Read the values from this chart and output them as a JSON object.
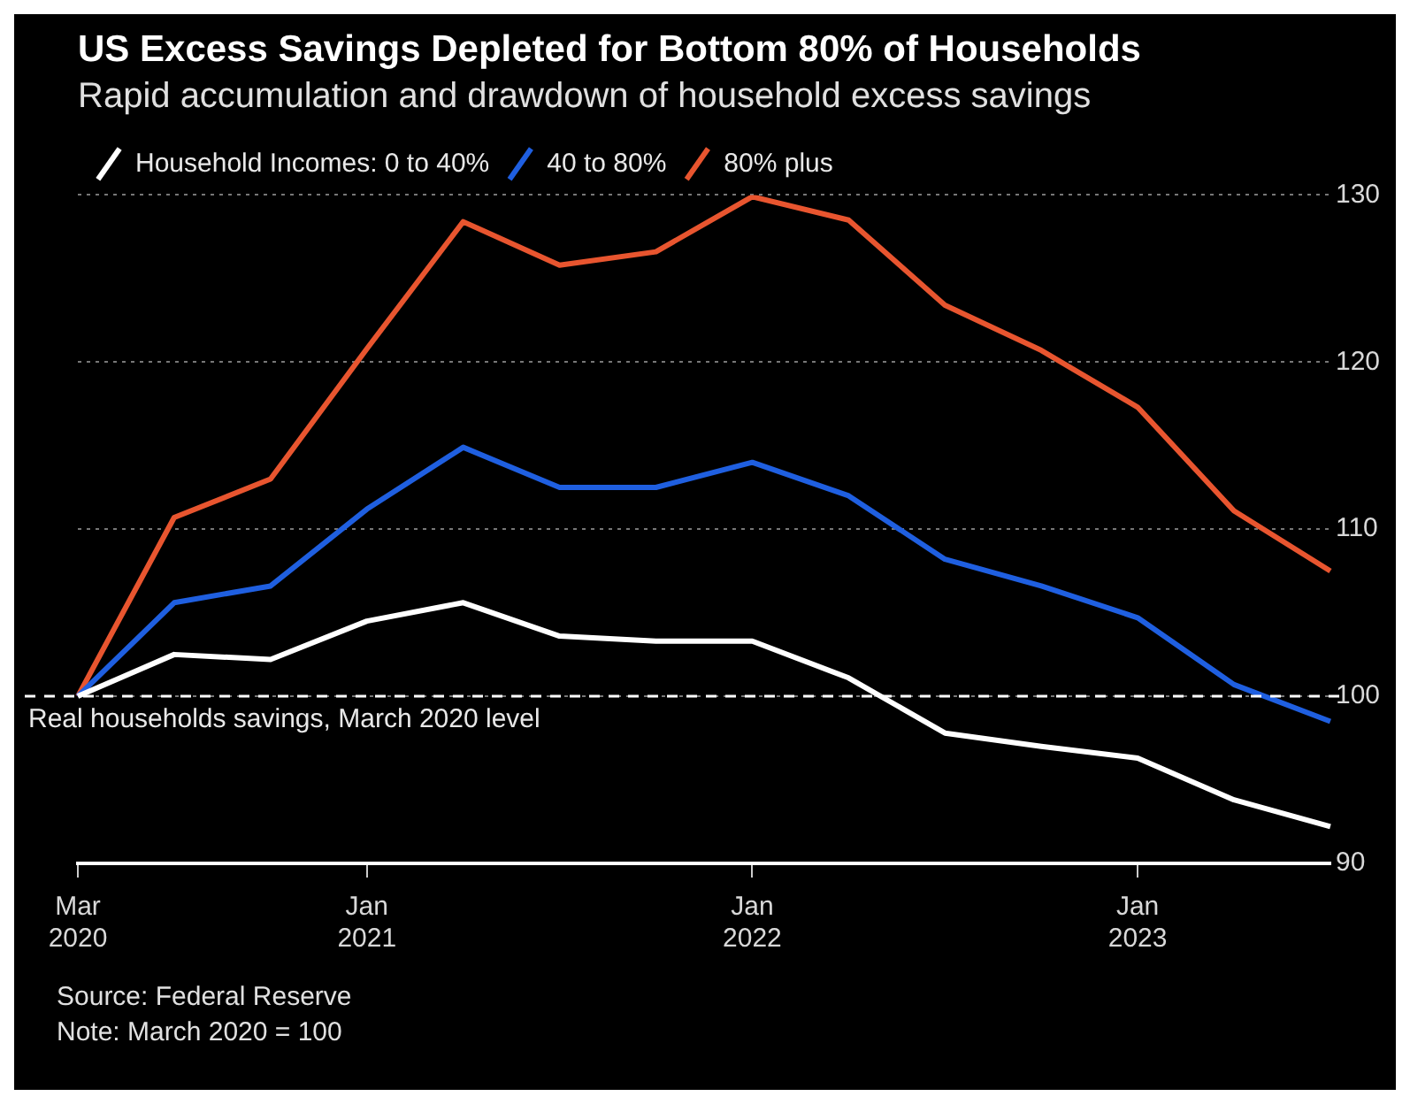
{
  "chart_data": {
    "type": "line",
    "title": "US Excess Savings Depleted for Bottom 80% of Households",
    "subtitle": "Rapid accumulation and drawdown of household excess savings",
    "categories": [
      "Mar 2020",
      null,
      null,
      "Jan 2021",
      null,
      null,
      null,
      "Jan 2022",
      null,
      null,
      null,
      "Jan 2023",
      null,
      null
    ],
    "series": [
      {
        "name": "Household Incomes: 0 to 40%",
        "color": "#ffffff",
        "values": [
          100,
          102.5,
          102.2,
          104.5,
          105.6,
          103.6,
          103.3,
          103.3,
          101.1,
          97.8,
          97,
          96.3,
          93.8,
          92.2
        ]
      },
      {
        "name": "40 to 80%",
        "color": "#1f5fe0",
        "values": [
          100,
          105.6,
          106.6,
          111.2,
          114.9,
          112.5,
          112.5,
          114,
          112,
          108.2,
          106.6,
          104.7,
          100.7,
          98.5
        ]
      },
      {
        "name": "80% plus",
        "color": "#e8552f",
        "values": [
          100,
          110.7,
          113,
          120.8,
          128.4,
          125.8,
          126.6,
          129.9,
          128.5,
          123.4,
          120.7,
          117.3,
          111.1,
          107.5
        ]
      }
    ],
    "ylim": [
      90,
      130
    ],
    "yticks": [
      90,
      100,
      110,
      120,
      130
    ],
    "grid": "y",
    "legend": "top left",
    "marker": "none",
    "line_style": "solid",
    "ref_lines": [
      {
        "axis": "y",
        "value": 100,
        "label": "Real households savings, March 2020 level",
        "line_style": "dashed",
        "color": "#ffffff"
      }
    ],
    "annotations": [
      "Source: Federal Reserve",
      "Note: March 2020 = 100"
    ]
  }
}
